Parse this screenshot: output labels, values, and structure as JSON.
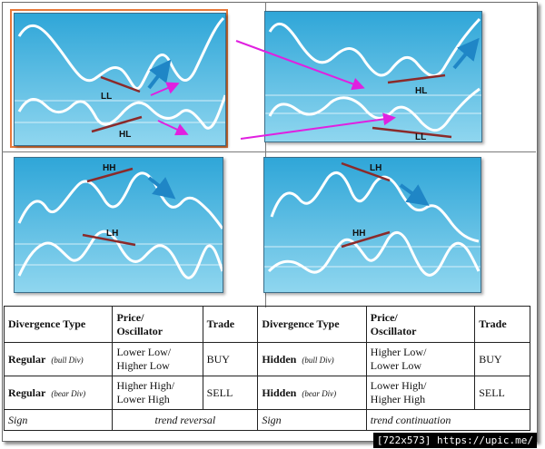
{
  "colors": {
    "panel_top": "#2fa6d8",
    "panel_bottom": "#8fd6ef",
    "curve": "#ffffff",
    "trendline": "#8b2a2a",
    "arrow_blue": "#1f86c6",
    "arrow_magenta": "#e020e0",
    "selection_border": "#e8793a"
  },
  "panels": [
    {
      "id": "regular-bullish",
      "price_label": "LL",
      "oscillator_label": "HL",
      "arrow": "up"
    },
    {
      "id": "hidden-bullish",
      "price_label": "HL",
      "oscillator_label": "LL",
      "arrow": "up"
    },
    {
      "id": "regular-bearish",
      "price_label": "HH",
      "oscillator_label": "LH",
      "arrow": "down"
    },
    {
      "id": "hidden-bearish",
      "price_label": "LH",
      "oscillator_label": "HH",
      "arrow": "down"
    }
  ],
  "table": {
    "headers": [
      "Divergence Type",
      "Price/\nOscillator",
      "Trade",
      "Divergence Type",
      "Price/\nOscillator",
      "Trade"
    ],
    "rows": [
      {
        "left_type": "Regular",
        "left_sub": "(bull Div)",
        "left_po": "Lower Low/\nHigher Low",
        "left_trade": "BUY",
        "right_type": "Hidden",
        "right_sub": "(bull Div)",
        "right_po": "Higher Low/\nLower Low",
        "right_trade": "BUY"
      },
      {
        "left_type": "Regular",
        "left_sub": "(bear Div)",
        "left_po": "Higher High/\nLower High",
        "left_trade": "SELL",
        "right_type": "Hidden",
        "right_sub": "(bear Div)",
        "right_po": "Lower High/\nHigher High",
        "right_trade": "SELL"
      }
    ],
    "sign": {
      "left_label": "Sign",
      "left_value": "trend reversal",
      "right_label": "Sign",
      "right_value": "trend continuation"
    }
  },
  "watermark": "[722x573] https://upic.me/"
}
